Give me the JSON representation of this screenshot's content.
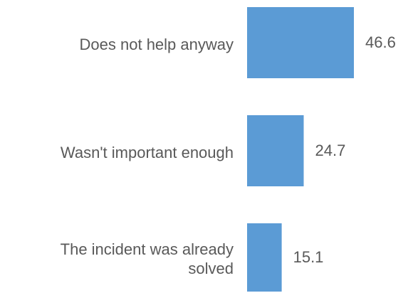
{
  "chart_data": {
    "type": "bar",
    "orientation": "horizontal",
    "categories": [
      "Does not help anyway",
      "Wasn't important enough",
      "The incident was already solved"
    ],
    "values": [
      46.6,
      24.7,
      15.1
    ],
    "data_labels": [
      "46.6",
      "24.7",
      "15.1"
    ],
    "category_label_lines": [
      [
        "Does not help anyway"
      ],
      [
        "Wasn't important enough"
      ],
      [
        "The incident was already",
        "solved"
      ]
    ],
    "bar_color": "#5b9bd5",
    "text_color": "#595959",
    "legend": "none",
    "grid": false,
    "axes_visible": false
  }
}
